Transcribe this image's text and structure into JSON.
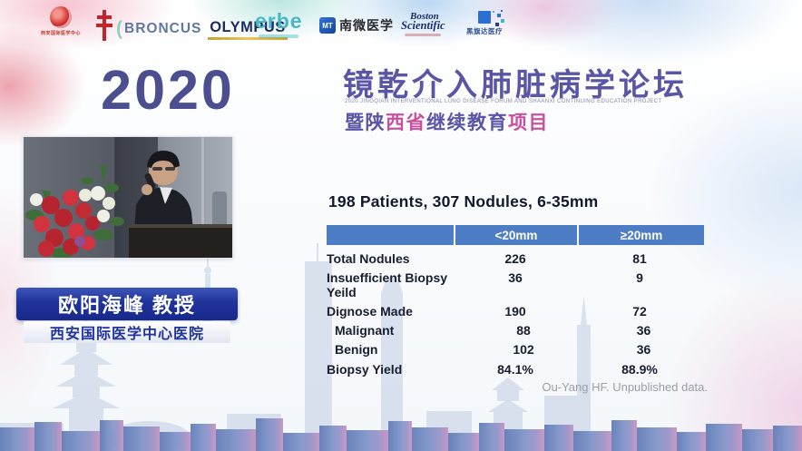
{
  "colors": {
    "year_navy": "#4b4e8f",
    "title_purple": "#5a55a5",
    "highlight_pink": "#c7509f",
    "table_header_blue": "#4d7ec5",
    "banner_blue": "#20339b",
    "red_brand": "#c2242d"
  },
  "sponsors": {
    "xian_imc": {
      "label": "西安国际医学中心"
    },
    "broncus": {
      "label": "BRONCUS"
    },
    "olympus": {
      "label": "OLYMPUS"
    },
    "erbe": {
      "label": "erbe"
    },
    "microtech": {
      "mark": "MT",
      "label": "南微医学"
    },
    "boston": {
      "line1": "Boston",
      "line2": "Scientific"
    },
    "pixelmed": {
      "label": "黑旗达医疗"
    }
  },
  "event": {
    "year": "2020",
    "title_cn": "镜乾介入肺脏病学论坛",
    "title_en": "2020 JINGQIAN INTERVENTIONAL LUNG DISEASE FORUM AND SHAANXI CONTINUING EDUCATION PROJECT",
    "subtitle_segments": [
      {
        "text": "暨陕",
        "color": "#5a55a5"
      },
      {
        "text": "西省",
        "color": "#c7509f"
      },
      {
        "text": "继续教育",
        "color": "#5a55a5"
      },
      {
        "text": "项目",
        "color": "#c7509f"
      }
    ]
  },
  "speaker": {
    "name": "欧阳海峰  教授",
    "affiliation": "西安国际医学中心医院"
  },
  "chart_data": {
    "type": "table",
    "title": "198 Patients, 307 Nodules, 6-35mm",
    "columns": [
      "",
      "<20mm",
      "≥20mm"
    ],
    "rows": [
      {
        "label": "Total Nodules",
        "values": [
          "226",
          "81"
        ],
        "indent": false
      },
      {
        "label": "Insuefficient Biopsy Yeild",
        "values": [
          "36",
          "9"
        ],
        "indent": false
      },
      {
        "label": "Dignose Made",
        "values": [
          "190",
          "72"
        ],
        "indent": false
      },
      {
        "label": "Malignant",
        "values": [
          "88",
          "36"
        ],
        "indent": true
      },
      {
        "label": "Benign",
        "values": [
          "102",
          "36"
        ],
        "indent": true
      },
      {
        "label": "Biopsy Yield",
        "values": [
          "84.1%",
          "88.9%"
        ],
        "indent": false
      }
    ],
    "source": "Ou-Yang HF. Unpublished data."
  }
}
